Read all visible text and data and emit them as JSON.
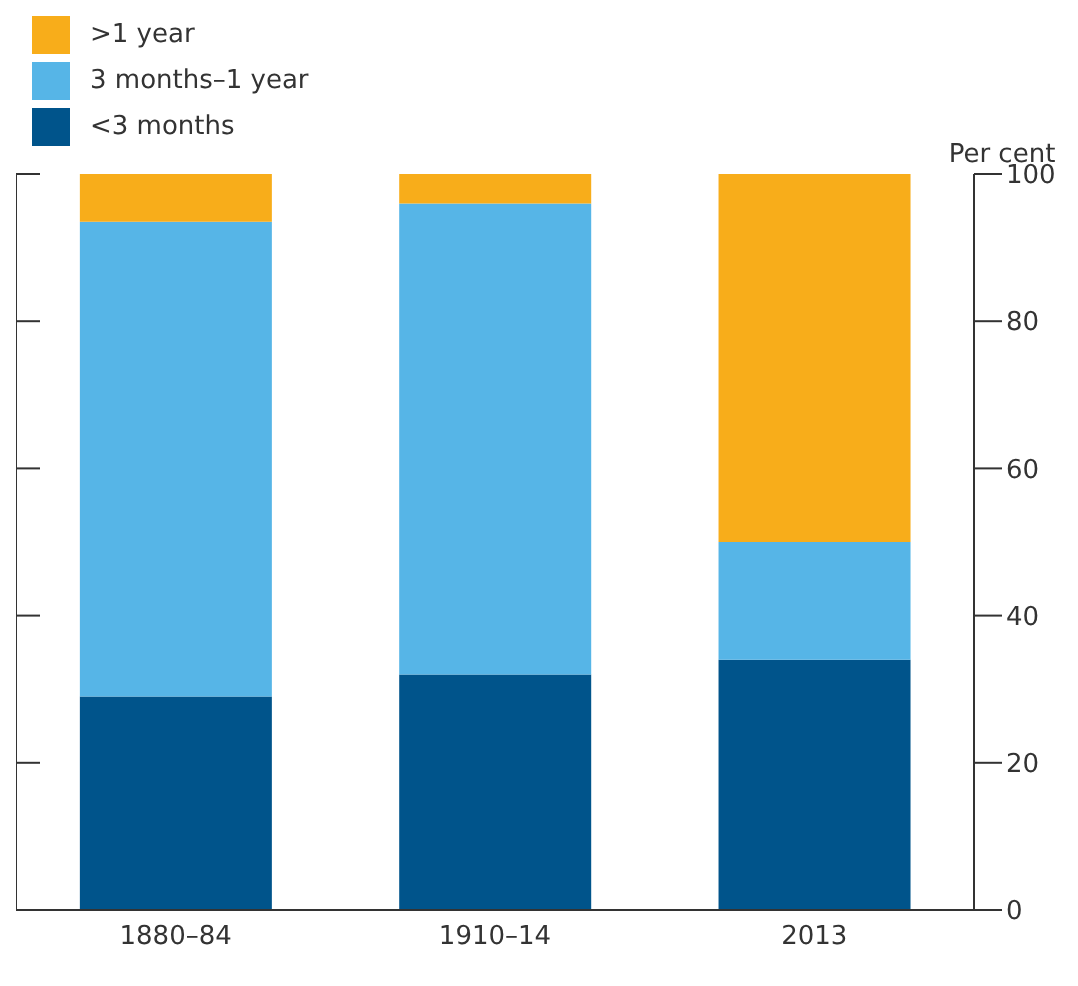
{
  "chart_data": {
    "type": "bar",
    "stacked": true,
    "ylabel": "Per cent",
    "categories": [
      "1880–84",
      "1910–14",
      "2013"
    ],
    "series": [
      {
        "name": "<3 months",
        "color": "#00548b",
        "values": [
          29,
          32,
          34
        ]
      },
      {
        "name": "3 months–1 year",
        "color": "#56b5e7",
        "values": [
          64.5,
          64,
          16
        ]
      },
      {
        "name": ">1 year",
        "color": "#f8ad1a",
        "values": [
          6.5,
          4,
          50
        ]
      }
    ],
    "ylim": [
      0,
      100
    ],
    "yticks": [
      0,
      20,
      40,
      60,
      80,
      100
    ],
    "legend": "top left"
  }
}
